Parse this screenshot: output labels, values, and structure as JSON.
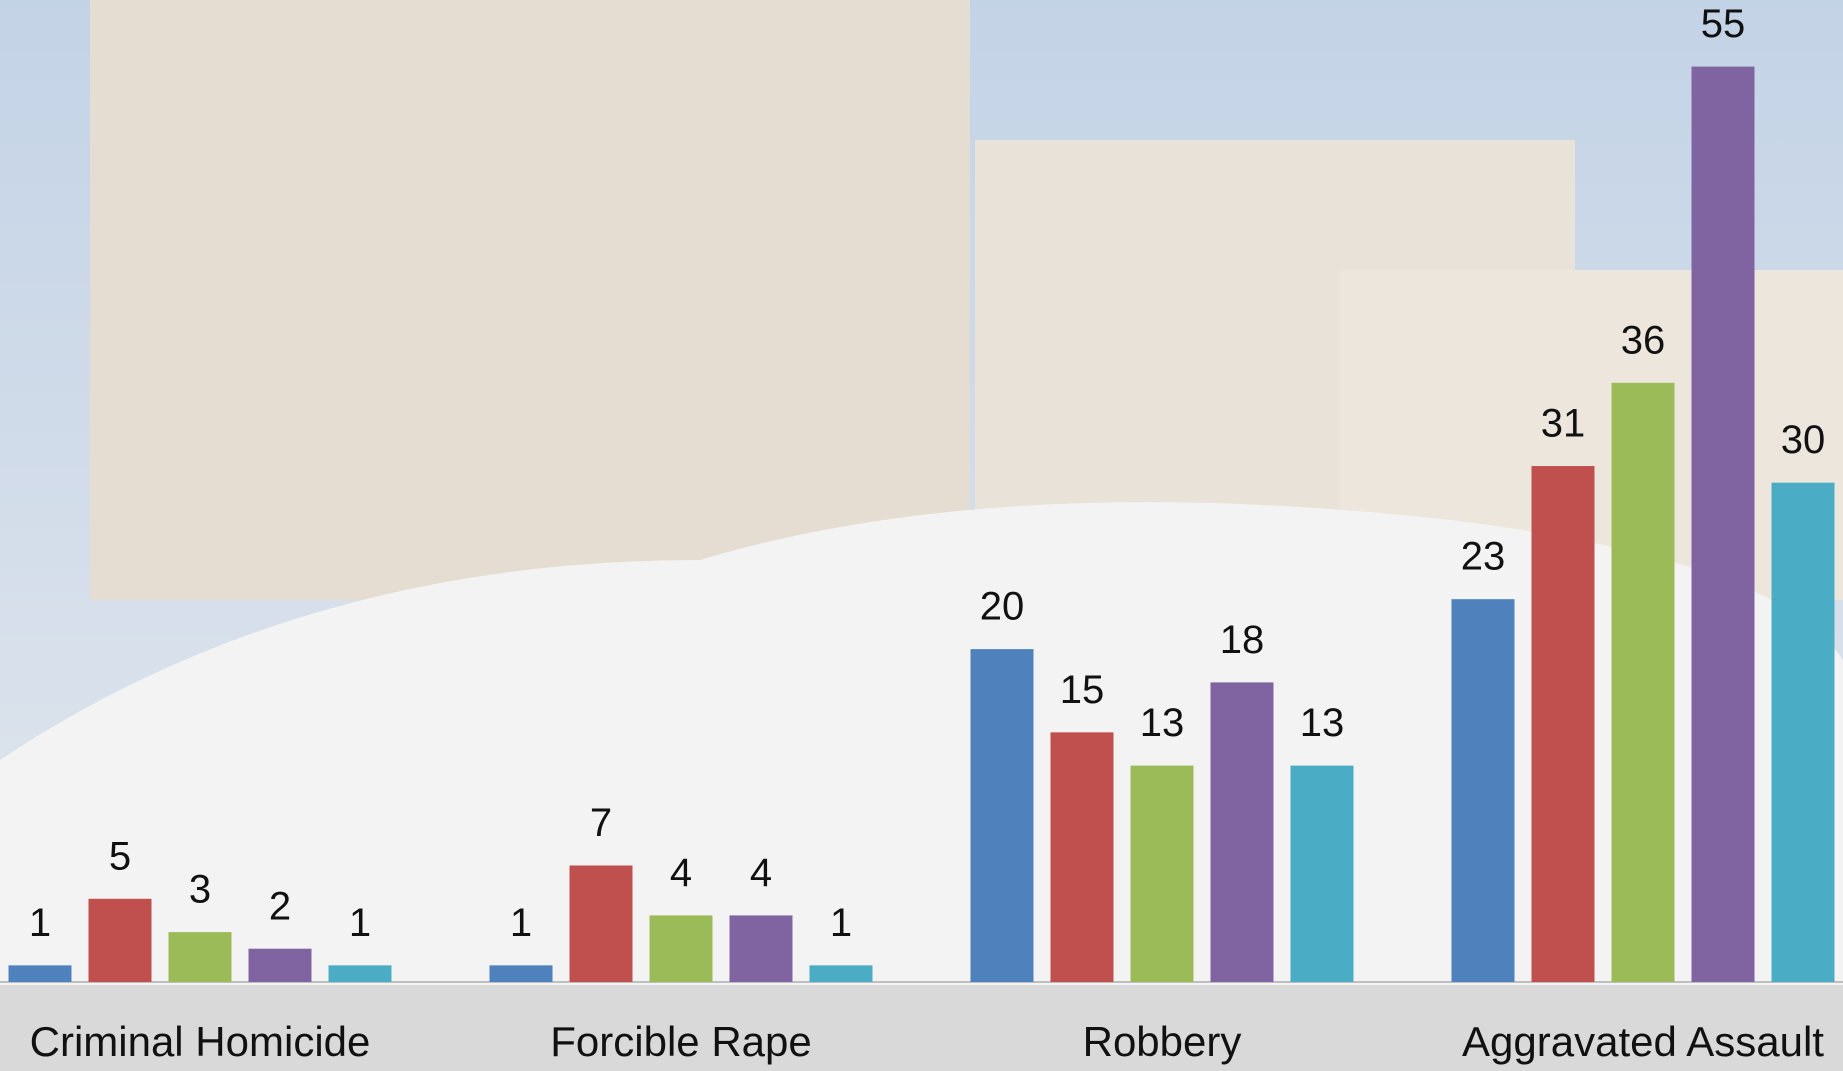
{
  "chart_data": {
    "type": "bar",
    "categories": [
      "Criminal Homicide",
      "Forcible Rape",
      "Robbery",
      "Aggravated Assault"
    ],
    "series": [
      {
        "color": "#4f81bd",
        "values": [
          1,
          1,
          20,
          23
        ]
      },
      {
        "color": "#c0504d",
        "values": [
          5,
          7,
          15,
          31
        ]
      },
      {
        "color": "#9bbb59",
        "values": [
          3,
          4,
          13,
          36
        ]
      },
      {
        "color": "#8064a2",
        "values": [
          2,
          4,
          18,
          55
        ]
      },
      {
        "color": "#4bacc6",
        "values": [
          1,
          1,
          13,
          30
        ]
      }
    ],
    "ylim": [
      0,
      59
    ],
    "grid": false
  }
}
